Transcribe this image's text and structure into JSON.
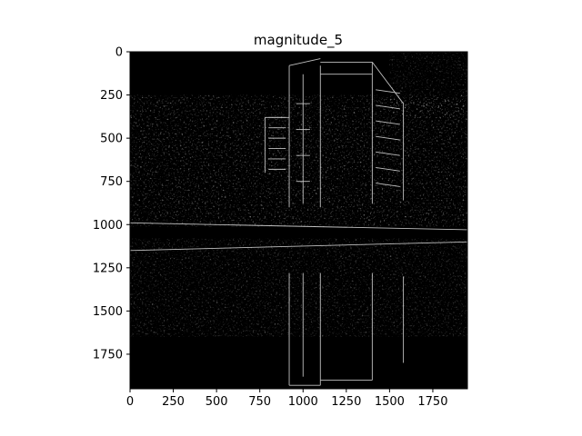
{
  "chart_data": {
    "type": "heatmap",
    "title": "magnitude_5",
    "xlabel": "",
    "ylabel": "",
    "colormap": "gray",
    "background_color": "#000000",
    "image_extent": {
      "x": [
        0,
        1950
      ],
      "y": [
        0,
        1950
      ]
    },
    "y_inverted": true,
    "xlim": [
      0,
      1950
    ],
    "ylim": [
      1950,
      0
    ],
    "x_ticks": [
      0,
      250,
      500,
      750,
      1000,
      1250,
      1500,
      1750
    ],
    "x_tick_labels": [
      "0",
      "250",
      "500",
      "750",
      "1000",
      "1250",
      "1500",
      "1750"
    ],
    "y_ticks": [
      0,
      250,
      500,
      750,
      1000,
      1250,
      1500,
      1750
    ],
    "y_tick_labels": [
      "0",
      "250",
      "500",
      "750",
      "1000",
      "1250",
      "1500",
      "1750"
    ],
    "grid": false,
    "legend": "none"
  }
}
